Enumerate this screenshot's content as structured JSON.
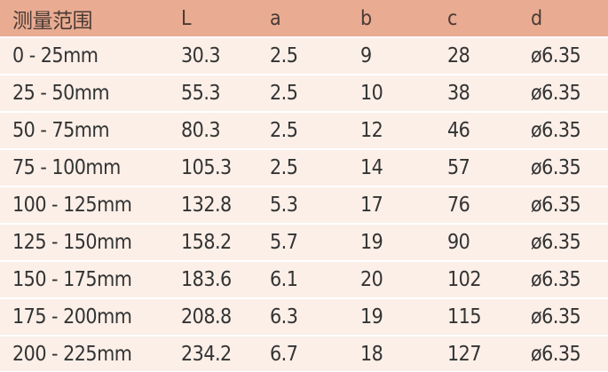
{
  "table": {
    "header": [
      "测量范围",
      "L",
      "a",
      "b",
      "c",
      "d"
    ],
    "rows": [
      [
        "0 - 25mm",
        "30.3",
        "2.5",
        "9",
        "28",
        "ø6.35"
      ],
      [
        "25 - 50mm",
        "55.3",
        "2.5",
        "10",
        "38",
        "ø6.35"
      ],
      [
        "50 - 75mm",
        "80.3",
        "2.5",
        "12",
        "46",
        "ø6.35"
      ],
      [
        "75 - 100mm",
        "105.3",
        "2.5",
        "14",
        "57",
        "ø6.35"
      ],
      [
        "100 - 125mm",
        "132.8",
        "5.3",
        "17",
        "76",
        "ø6.35"
      ],
      [
        "125 - 150mm",
        "158.2",
        "5.7",
        "19",
        "90",
        "ø6.35"
      ],
      [
        "150 - 175mm",
        "183.6",
        "6.1",
        "20",
        "102",
        "ø6.35"
      ],
      [
        "175 - 200mm",
        "208.8",
        "6.3",
        "19",
        "115",
        "ø6.35"
      ],
      [
        "200 - 225mm",
        "234.2",
        "6.7",
        "18",
        "127",
        "ø6.35"
      ]
    ]
  }
}
